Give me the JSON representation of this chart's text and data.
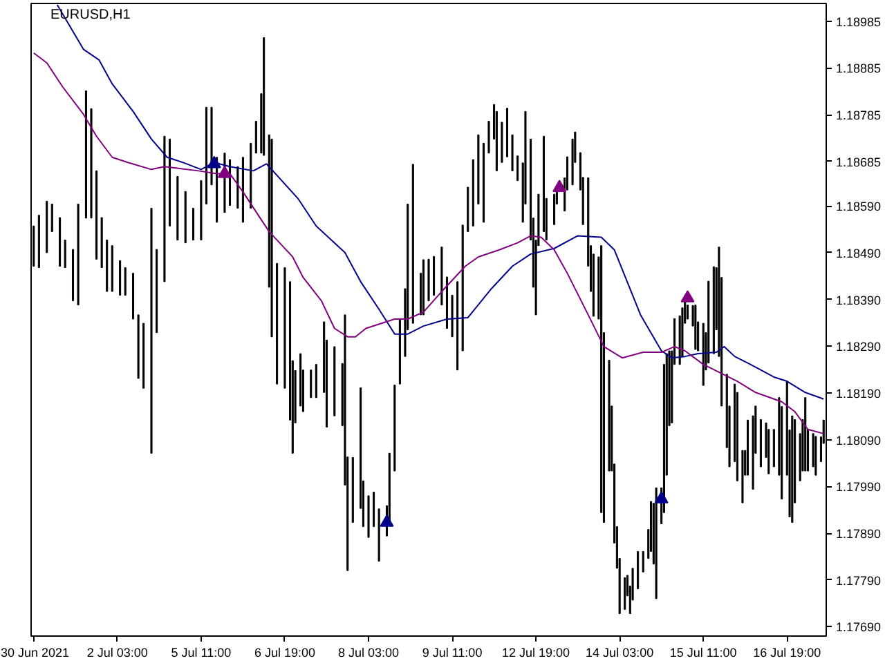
{
  "chart_data": {
    "type": "bar",
    "title": "EURUSD,H1",
    "categories": [
      "30 Jun 2021",
      null,
      null,
      null,
      null,
      null,
      null,
      null,
      null,
      null,
      null,
      null,
      null,
      null,
      null,
      null,
      null,
      null,
      null,
      null,
      null,
      null,
      null,
      null,
      null,
      null,
      null,
      null,
      null,
      null,
      null,
      null,
      "2 Jul 03:00",
      null,
      null,
      null,
      null,
      null,
      null,
      null,
      null,
      null,
      null,
      null,
      null,
      null,
      null,
      null,
      null,
      null,
      null,
      null,
      null,
      null,
      null,
      null,
      null,
      null,
      null,
      null,
      null,
      null,
      null,
      null,
      "5 Jul 11:00",
      null,
      null,
      null,
      null,
      null,
      null,
      null,
      null,
      null,
      null,
      null,
      null,
      null,
      null,
      null,
      null,
      null,
      null,
      null,
      null,
      null,
      null,
      null,
      null,
      null,
      null,
      null,
      null,
      null,
      null,
      null,
      "6 Jul 19:00",
      null,
      null,
      null,
      null,
      null,
      null,
      null,
      null,
      null,
      null,
      null,
      null,
      null,
      null,
      null,
      null,
      null,
      null,
      null,
      null,
      null,
      null,
      null,
      null,
      null,
      null,
      null,
      null,
      null,
      null,
      null,
      "8 Jul 03:00",
      null,
      null,
      null,
      null,
      null,
      null,
      null,
      null,
      null,
      null,
      null,
      null,
      null,
      null,
      null,
      null,
      null,
      null,
      null,
      null,
      null,
      null,
      null,
      null,
      null,
      null,
      null,
      null,
      null,
      null,
      null,
      "9 Jul 11:00",
      null,
      null,
      null,
      null,
      null,
      null,
      null,
      null,
      null,
      null,
      null,
      null,
      null,
      null,
      null,
      null,
      null,
      null,
      null,
      null,
      null,
      null,
      null,
      null,
      null,
      null,
      null,
      null,
      null,
      null,
      null,
      "12 Jul 19:00",
      null,
      null,
      null,
      null,
      null,
      null,
      null,
      null,
      null,
      null,
      null,
      null,
      null,
      null,
      null,
      null,
      null,
      null,
      null,
      null,
      null,
      null,
      null,
      null,
      null,
      null,
      null,
      null,
      null,
      null,
      null,
      "14 Jul 03:00",
      null,
      null,
      null,
      null,
      null,
      null,
      null,
      null,
      null,
      null,
      null,
      null,
      null,
      null,
      null,
      null,
      null,
      null,
      null,
      null,
      null,
      null,
      null,
      null,
      null,
      null,
      null,
      null,
      null,
      null,
      null,
      "15 Jul 11:00",
      null,
      null,
      null,
      null,
      null,
      null,
      null,
      null,
      null,
      null,
      null,
      null,
      null,
      null,
      null,
      null,
      null,
      null,
      null,
      null,
      null,
      null,
      null,
      null,
      null,
      null,
      null,
      null,
      null,
      null,
      null,
      "16 Jul 19:00",
      null,
      null,
      null,
      null,
      null,
      null,
      null,
      null,
      null,
      null,
      null,
      null,
      null,
      null
    ],
    "ylim": [
      1.1767,
      1.19023
    ],
    "yticks": [
      1.18985,
      1.18885,
      1.18785,
      1.18685,
      {
        "value": 1.1859,
        "label": "1.18590"
      },
      {
        "value": 1.1849,
        "label": "1.18490"
      },
      {
        "value": 1.1839,
        "label": "1.18390"
      },
      {
        "value": 1.1829,
        "label": "1.18290"
      },
      {
        "value": 1.1819,
        "label": "1.18190"
      },
      {
        "value": 1.1809,
        "label": "1.18090"
      },
      {
        "value": 1.1799,
        "label": "1.17990"
      },
      {
        "value": 1.1789,
        "label": "1.17890"
      },
      {
        "value": 1.1779,
        "label": "1.17790"
      },
      {
        "value": 1.1769,
        "label": "1.17690"
      }
    ],
    "series": [
      {
        "color": "#000000",
        "base": [
          1.18461,
          null,
          1.18458,
          null,
          null,
          1.1849,
          null,
          1.18535,
          null,
          null,
          1.18461,
          null,
          1.18458,
          null,
          null,
          1.18387,
          null,
          1.18378,
          null,
          null,
          1.18564,
          null,
          1.18564,
          null,
          1.18476,
          null,
          1.18458,
          null,
          1.18407,
          null,
          1.18407,
          null,
          null,
          1.18399,
          null,
          1.18399,
          null,
          null,
          1.18348,
          null,
          1.18221,
          null,
          1.182,
          null,
          null,
          1.18061,
          null,
          1.18319,
          null,
          null,
          1.18428,
          null,
          1.18547,
          null,
          null,
          1.18517,
          null,
          null,
          1.18511,
          null,
          null,
          1.18517,
          null,
          null,
          1.18517,
          null,
          1.18594,
          null,
          1.18635,
          null,
          1.18555,
          null,
          null,
          1.18576,
          null,
          1.18591,
          null,
          null,
          1.18585,
          null,
          1.18555,
          null,
          null,
          1.18585,
          null,
          1.18703,
          null,
          1.18703,
          1.18698,
          null,
          1.18416,
          1.1831,
          null,
          1.18209,
          null,
          null,
          1.182,
          null,
          1.18132,
          1.18061,
          1.18126,
          null,
          1.18162,
          1.1815,
          null,
          null,
          1.1818,
          null,
          1.1818,
          null,
          null,
          1.18191,
          1.18117,
          null,
          null,
          1.18141,
          null,
          null,
          1.1812,
          1.17993,
          1.1781,
          null,
          1.17913,
          null,
          null,
          1.17943,
          1.17904,
          null,
          1.17881,
          null,
          1.17904,
          null,
          1.1783,
          null,
          null,
          1.17884,
          1.17913,
          null,
          1.18023,
          null,
          1.18209,
          null,
          1.18268,
          1.18325,
          null,
          1.18339,
          null,
          null,
          1.18357,
          1.18357,
          null,
          1.18387,
          null,
          1.18399,
          null,
          null,
          1.18378,
          null,
          1.18328,
          null,
          1.1831,
          null,
          1.18239,
          null,
          1.1828,
          null,
          1.18535,
          null,
          1.18547,
          null,
          1.18594,
          null,
          1.18555,
          null,
          1.18703,
          null,
          1.18733,
          1.18665,
          null,
          1.18683,
          null,
          1.18695,
          null,
          1.18665,
          null,
          1.18644,
          null,
          1.18555,
          1.18594,
          null,
          1.18517,
          1.18416,
          1.18357,
          1.18505,
          null,
          1.18535,
          1.18517,
          null,
          null,
          1.1855,
          1.18594,
          null,
          null,
          1.18579,
          1.18624,
          null,
          1.18635,
          1.18683,
          null,
          1.18624,
          1.1855,
          null,
          1.18461,
          1.18407,
          1.18354,
          null,
          1.18348,
          1.17934,
          1.17913,
          null,
          1.18023,
          1.18023,
          1.17869,
          1.17815,
          1.17718,
          null,
          1.17727,
          1.17756,
          1.17718,
          1.17747,
          null,
          1.17771,
          null,
          1.17807,
          null,
          1.17836,
          1.17851,
          1.17824,
          1.1775,
          null,
          1.1791,
          1.17934,
          1.18014,
          1.1812,
          1.18126,
          1.18251,
          null,
          1.18251,
          1.18268,
          1.18339,
          1.18348,
          null,
          1.18333,
          1.18283,
          1.1828,
          null,
          1.18206,
          1.18239,
          1.18254,
          null,
          1.18274,
          1.18325,
          1.18268,
          1.18162,
          null,
          1.18073,
          1.18032,
          null,
          1.18043,
          1.18002,
          null,
          1.17955,
          1.18014,
          1.18014,
          null,
          1.17984,
          1.18061,
          null,
          1.18032,
          null,
          1.18052,
          1.18017,
          null,
          1.18032,
          null,
          1.18014,
          1.17963,
          null,
          1.18014,
          1.17925,
          1.17913,
          1.17955,
          null,
          1.18002,
          1.18023,
          1.18023,
          1.18023,
          null,
          1.18032,
          1.18014,
          null,
          1.18043,
          1.18082
        ],
        "values": [
          0.00086,
          null,
          0.00112,
          null,
          null,
          0.0011,
          null,
          0.00059,
          null,
          null,
          0.00104,
          null,
          0.00059,
          null,
          null,
          0.0011,
          null,
          0.00216,
          null,
          null,
          0.00272,
          null,
          0.00234,
          null,
          0.00189,
          null,
          0.00107,
          null,
          0.0011,
          null,
          0.00098,
          null,
          null,
          0.00074,
          null,
          0.00059,
          null,
          null,
          0.00098,
          null,
          0.00136,
          null,
          0.00139,
          null,
          null,
          0.00524,
          null,
          0.00178,
          null,
          null,
          0.00311,
          null,
          0.00186,
          null,
          null,
          0.00136,
          null,
          null,
          0.0011,
          null,
          null,
          0.00068,
          null,
          null,
          0.00127,
          null,
          0.00207,
          null,
          0.00166,
          null,
          0.00139,
          null,
          null,
          0.00127,
          null,
          0.00098,
          null,
          null,
          0.00089,
          null,
          0.00139,
          null,
          null,
          0.00139,
          null,
          0.00068,
          null,
          0.00127,
          0.00252,
          null,
          0.00326,
          0.00423,
          null,
          0.00258,
          null,
          null,
          0.00258,
          null,
          0.00296,
          0.00198,
          0.00112,
          null,
          0.00112,
          0.00089,
          null,
          null,
          0.00059,
          null,
          0.00071,
          null,
          null,
          0.00151,
          0.00186,
          null,
          null,
          0.00148,
          null,
          null,
          0.00133,
          0.00364,
          0.00243,
          null,
          0.00139,
          null,
          null,
          0.00258,
          0.00098,
          null,
          0.00089,
          null,
          0.00074,
          null,
          0.00112,
          null,
          null,
          0.00065,
          0.00148,
          null,
          0.00184,
          null,
          0.00139,
          null,
          0.00145,
          0.00269,
          null,
          0.0034,
          null,
          null,
          0.00089,
          0.00118,
          null,
          0.00089,
          null,
          0.00083,
          null,
          null,
          0.00124,
          null,
          0.0011,
          null,
          0.00089,
          null,
          0.00189,
          null,
          0.00269,
          null,
          0.00095,
          null,
          0.00142,
          null,
          0.00148,
          null,
          0.00169,
          null,
          0.00068,
          null,
          0.00074,
          0.00127,
          null,
          0.00086,
          null,
          0.00104,
          null,
          0.00077,
          null,
          0.00053,
          null,
          0.00127,
          0.00198,
          null,
          0.00216,
          0.00148,
          0.0016,
          0.0011,
          null,
          0.00204,
          0.00089,
          null,
          null,
          0.00065,
          0.0003,
          null,
          null,
          0.00071,
          0.00071,
          null,
          0.00098,
          0.00065,
          null,
          0.0008,
          0.00101,
          null,
          0.00189,
          0.00098,
          0.00133,
          null,
          0.00133,
          0.00571,
          0.00406,
          null,
          0.00237,
          0.00139,
          0.00169,
          0.00089,
          0.00118,
          null,
          0.00068,
          0.00044,
          0.00059,
          0.00068,
          null,
          0.0008,
          null,
          0.00044,
          null,
          0.00062,
          0.00107,
          0.0013,
          0.00237,
          null,
          0.00077,
          0.00317,
          0.0026,
          0.0016,
          0.00154,
          0.00098,
          null,
          0.00104,
          0.00104,
          0.00047,
          0.0003,
          null,
          0.00044,
          0.00095,
          0.00062,
          null,
          0.00133,
          0.0008,
          0.00175,
          null,
          0.00186,
          0.00133,
          0.00234,
          0.00275,
          null,
          0.00157,
          0.0013,
          null,
          0.00166,
          0.00189,
          null,
          0.00112,
          0.00053,
          0.00118,
          null,
          0.00157,
          0.00101,
          null,
          0.00101,
          null,
          0.00074,
          0.00095,
          null,
          0.0008,
          null,
          0.00166,
          0.00198,
          null,
          0.00201,
          0.00186,
          0.00228,
          0.00178,
          null,
          0.00101,
          0.0011,
          0.00157,
          0.00089,
          null,
          0.00071,
          0.00083,
          null,
          0.00053,
          0.0005
        ]
      },
      {
        "type": "line",
        "color": "#00008b",
        "values": [
          null,
          null,
          null,
          null,
          null,
          null,
          null,
          null,
          null,
          1.1902,
          null,
          null,
          null,
          null,
          null,
          null,
          null,
          null,
          null,
          1.18925,
          null,
          null,
          null,
          null,
          null,
          1.18902,
          null,
          null,
          null,
          null,
          1.18851,
          null,
          null,
          null,
          null,
          null,
          null,
          null,
          1.18792,
          null,
          null,
          null,
          null,
          null,
          null,
          1.18733,
          null,
          null,
          null,
          null,
          null,
          1.18694,
          null,
          null,
          null,
          null,
          null,
          1.18683,
          null,
          null,
          null,
          null,
          null,
          null,
          1.18668,
          null,
          null,
          null,
          null,
          1.18683,
          null,
          null,
          null,
          null,
          null,
          1.18674,
          null,
          null,
          null,
          null,
          null,
          null,
          null,
          null,
          1.18665,
          null,
          null,
          null,
          null,
          1.1868,
          null,
          null,
          null,
          null,
          null,
          null,
          null,
          null,
          null,
          null,
          null,
          1.18606,
          null,
          null,
          null,
          null,
          null,
          null,
          1.18547,
          null,
          null,
          null,
          null,
          null,
          null,
          null,
          null,
          null,
          null,
          1.1849,
          null,
          null,
          null,
          null,
          null,
          1.18428,
          null,
          null,
          null,
          null,
          null,
          null,
          1.18369,
          null,
          null,
          null,
          null,
          null,
          1.18316,
          null,
          null,
          null,
          null,
          1.18316,
          null,
          null,
          null,
          null,
          null,
          1.18333,
          null,
          null,
          null,
          null,
          null,
          null,
          null,
          null,
          1.18348,
          null,
          null,
          null,
          null,
          null,
          null,
          null,
          1.18351,
          null,
          null,
          null,
          null,
          null,
          null,
          null,
          null,
          1.18413,
          null,
          null,
          null,
          null,
          null,
          null,
          null,
          1.18461,
          null,
          null,
          null,
          null,
          null,
          null,
          1.18487,
          null,
          null,
          null,
          null,
          null,
          null,
          null,
          null,
          1.18499,
          null,
          null,
          null,
          null,
          null,
          null,
          null,
          null,
          1.18526,
          null,
          null,
          null,
          null,
          null,
          null,
          null,
          null,
          1.18523,
          null,
          null,
          null,
          null,
          1.18496,
          null,
          null,
          null,
          null,
          null,
          null,
          null,
          null,
          null,
          1.18357,
          null,
          null,
          null,
          null,
          null,
          null,
          null,
          1.1828,
          null,
          null,
          null,
          1.18265,
          null,
          null,
          null,
          null,
          1.18268,
          null,
          null,
          null,
          null,
          1.18274,
          null,
          null,
          null,
          null,
          null,
          null,
          1.18277,
          null,
          null,
          1.18289,
          null,
          null,
          null,
          1.18268,
          null,
          null,
          null,
          null,
          null,
          1.18251,
          null,
          null,
          null,
          null,
          null,
          null,
          null,
          null,
          1.18224,
          null,
          null,
          null,
          null,
          1.18215,
          null,
          null,
          null,
          null,
          null,
          null,
          1.18191,
          null,
          null,
          null,
          null,
          null,
          null,
          1.18177
        ]
      },
      {
        "type": "line",
        "color": "#800080",
        "values": [
          1.18917,
          null,
          null,
          null,
          null,
          1.18896,
          null,
          null,
          null,
          null,
          null,
          1.18845,
          null,
          null,
          null,
          null,
          null,
          null,
          null,
          1.18786,
          null,
          null,
          null,
          null,
          1.18739,
          null,
          null,
          null,
          null,
          null,
          1.18694,
          null,
          null,
          null,
          null,
          null,
          1.18683,
          null,
          null,
          null,
          null,
          null,
          null,
          null,
          null,
          1.18668,
          null,
          null,
          null,
          null,
          1.18674,
          null,
          null,
          null,
          null,
          null,
          null,
          null,
          null,
          null,
          null,
          null,
          null,
          1.18665,
          null,
          null,
          null,
          null,
          null,
          null,
          1.18659,
          null,
          null,
          null,
          null,
          1.18659,
          null,
          null,
          null,
          null,
          1.1862,
          null,
          null,
          null,
          null,
          null,
          null,
          null,
          null,
          null,
          1.18535,
          null,
          null,
          null,
          null,
          null,
          null,
          null,
          null,
          1.18481,
          null,
          null,
          null,
          1.18437,
          null,
          null,
          null,
          null,
          null,
          null,
          1.18387,
          null,
          null,
          null,
          null,
          1.18328,
          null,
          null,
          null,
          null,
          1.1831,
          null,
          null,
          1.1831,
          null,
          null,
          null,
          1.18328,
          null,
          null,
          null,
          null,
          null,
          null,
          null,
          null,
          null,
          null,
          1.18348,
          null,
          null,
          null,
          null,
          1.18348,
          null,
          null,
          null,
          null,
          null,
          1.18363,
          null,
          null,
          null,
          null,
          null,
          null,
          1.18407,
          null,
          null,
          null,
          null,
          null,
          null,
          null,
          null,
          1.18461,
          null,
          null,
          null,
          null,
          1.18481,
          null,
          null,
          null,
          null,
          null,
          null,
          null,
          1.18496,
          null,
          null,
          null,
          null,
          null,
          null,
          1.18511,
          null,
          null,
          null,
          null,
          1.18526,
          null,
          null,
          null,
          1.18523,
          null,
          null,
          null,
          null,
          1.18496,
          null,
          null,
          null,
          null,
          1.18446,
          null,
          null,
          null,
          null,
          null,
          null,
          null,
          1.18357,
          null,
          null,
          null,
          null,
          null,
          1.18289,
          null,
          null,
          null,
          null,
          null,
          null,
          1.18265,
          null,
          null,
          null,
          null,
          null,
          null,
          null,
          1.18277,
          null,
          null,
          null,
          null,
          null,
          null,
          1.18277,
          null,
          null,
          null,
          null,
          1.18289,
          null,
          null,
          null,
          1.1828,
          null,
          null,
          null,
          null,
          null,
          null,
          1.18251,
          null,
          null,
          null,
          null,
          null,
          null,
          null,
          null,
          null,
          null,
          null,
          null,
          1.18215,
          null,
          null,
          null,
          null,
          null,
          null,
          1.18191,
          null,
          null,
          null,
          null,
          null,
          null,
          null,
          null,
          null,
          1.18171,
          null,
          null,
          null,
          null,
          1.1815,
          null,
          null,
          null,
          null,
          1.18112,
          null,
          null,
          null,
          null,
          null,
          1.18103
        ]
      },
      {
        "type": "scatter",
        "marker": "triangle",
        "color": "#00008b",
        "values": [
          null,
          null,
          null,
          null,
          null,
          null,
          null,
          null,
          null,
          null,
          null,
          null,
          null,
          null,
          null,
          null,
          null,
          null,
          null,
          null,
          null,
          null,
          null,
          null,
          null,
          null,
          null,
          null,
          null,
          null,
          null,
          null,
          null,
          null,
          null,
          null,
          null,
          null,
          null,
          null,
          null,
          null,
          null,
          null,
          null,
          null,
          null,
          null,
          null,
          null,
          null,
          null,
          null,
          null,
          null,
          null,
          null,
          null,
          null,
          null,
          null,
          null,
          null,
          null,
          null,
          null,
          null,
          null,
          null,
          1.1868,
          null,
          null,
          null,
          null,
          null,
          null,
          null,
          null,
          null,
          null,
          null,
          null,
          null,
          null,
          null,
          null,
          null,
          null,
          null,
          null,
          null,
          null,
          null,
          null,
          null,
          null,
          null,
          null,
          null,
          null,
          null,
          null,
          null,
          null,
          null,
          null,
          null,
          null,
          null,
          null,
          null,
          null,
          null,
          null,
          null,
          null,
          null,
          null,
          null,
          null,
          null,
          null,
          null,
          null,
          null,
          null,
          null,
          null,
          null,
          null,
          null,
          null,
          null,
          null,
          null,
          1.17913,
          null,
          null,
          null,
          null,
          null,
          null,
          null,
          null,
          null,
          null,
          null,
          null,
          null,
          null,
          null,
          null,
          null,
          null,
          null,
          null,
          null,
          null,
          null,
          null,
          null,
          null,
          null,
          null,
          null,
          null,
          null,
          null,
          null,
          null,
          null,
          null,
          null,
          null,
          null,
          null,
          null,
          null,
          null,
          null,
          null,
          null,
          null,
          null,
          null,
          null,
          null,
          null,
          null,
          null,
          null,
          null,
          null,
          null,
          null,
          null,
          null,
          null,
          null,
          null,
          null,
          null,
          null,
          null,
          null,
          null,
          null,
          null,
          null,
          null,
          null,
          null,
          null,
          null,
          null,
          null,
          null,
          null,
          null,
          null,
          null,
          null,
          null,
          null,
          null,
          null,
          null,
          null,
          null,
          null,
          null,
          null,
          null,
          null,
          null,
          null,
          null,
          null,
          null,
          null,
          1.17963,
          null,
          null,
          null,
          null,
          null,
          null,
          null,
          null,
          null,
          null,
          null,
          null,
          null,
          null,
          null,
          null,
          null,
          null,
          null,
          null,
          null,
          null,
          null,
          null,
          null,
          null,
          null,
          null,
          null,
          null,
          null,
          null,
          null,
          null,
          null,
          null,
          null,
          null,
          null,
          null,
          null,
          null,
          null,
          null,
          null,
          null,
          null,
          null,
          null,
          null,
          null,
          null,
          null,
          null,
          null,
          null,
          null,
          null,
          null,
          null,
          null,
          null
        ]
      },
      {
        "type": "scatter",
        "marker": "triangle",
        "color": "#800080",
        "values": [
          null,
          null,
          null,
          null,
          null,
          null,
          null,
          null,
          null,
          null,
          null,
          null,
          null,
          null,
          null,
          null,
          null,
          null,
          null,
          null,
          null,
          null,
          null,
          null,
          null,
          null,
          null,
          null,
          null,
          null,
          null,
          null,
          null,
          null,
          null,
          null,
          null,
          null,
          null,
          null,
          null,
          null,
          null,
          null,
          null,
          null,
          null,
          null,
          null,
          null,
          null,
          null,
          null,
          null,
          null,
          null,
          null,
          null,
          null,
          null,
          null,
          null,
          null,
          null,
          null,
          null,
          null,
          null,
          null,
          null,
          null,
          null,
          null,
          1.18659,
          null,
          null,
          null,
          null,
          null,
          null,
          null,
          null,
          null,
          null,
          null,
          null,
          null,
          null,
          null,
          null,
          null,
          null,
          null,
          null,
          null,
          null,
          null,
          null,
          null,
          null,
          null,
          null,
          null,
          null,
          null,
          null,
          null,
          null,
          null,
          null,
          null,
          null,
          null,
          null,
          null,
          null,
          null,
          null,
          null,
          null,
          null,
          null,
          null,
          null,
          null,
          null,
          null,
          null,
          null,
          null,
          null,
          null,
          null,
          null,
          null,
          null,
          null,
          null,
          null,
          null,
          null,
          null,
          null,
          null,
          null,
          null,
          null,
          null,
          null,
          null,
          null,
          null,
          null,
          null,
          null,
          null,
          null,
          null,
          null,
          null,
          null,
          null,
          null,
          null,
          null,
          null,
          null,
          null,
          null,
          null,
          null,
          null,
          null,
          null,
          null,
          null,
          null,
          null,
          null,
          null,
          null,
          null,
          null,
          null,
          null,
          null,
          null,
          null,
          null,
          null,
          null,
          null,
          null,
          null,
          null,
          null,
          null,
          null,
          null,
          null,
          null,
          1.18629,
          null,
          null,
          null,
          null,
          null,
          null,
          null,
          null,
          null,
          null,
          null,
          null,
          null,
          null,
          null,
          null,
          null,
          null,
          null,
          null,
          null,
          null,
          null,
          null,
          null,
          null,
          null,
          null,
          null,
          null,
          null,
          null,
          null,
          null,
          null,
          null,
          null,
          null,
          null,
          null,
          null,
          null,
          null,
          null,
          null,
          null,
          null,
          null,
          1.18393,
          null,
          null,
          null,
          null,
          null,
          null,
          null,
          null,
          null,
          null,
          null,
          null,
          null,
          null,
          null,
          null,
          null,
          null,
          null,
          null,
          null,
          null,
          null,
          null,
          null,
          null,
          null,
          null,
          null,
          null,
          null,
          null,
          null,
          null,
          null,
          null,
          null,
          null,
          null,
          null,
          null,
          null,
          null,
          null,
          null,
          null,
          null,
          null,
          null,
          null,
          null,
          null
        ]
      }
    ]
  }
}
